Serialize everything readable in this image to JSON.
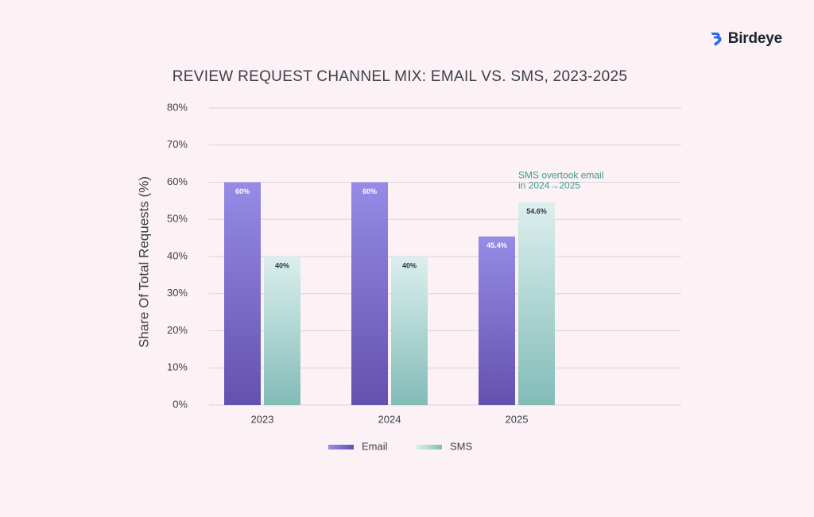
{
  "brand": {
    "name": "Birdeye",
    "icon": "birdeye-logo-icon"
  },
  "colors": {
    "email_top": "#968be6",
    "email_bottom": "#6351ae",
    "sms_top": "#dcefee",
    "sms_bottom": "#82bcb7",
    "grid": "#d9d4d9",
    "annotation": "#3a9a91"
  },
  "chart_data": {
    "type": "bar",
    "title": "REVIEW REQUEST CHANNEL MIX: EMAIL VS. SMS, 2023-2025",
    "xlabel": "",
    "ylabel": "Share Of Total Requests (%)",
    "categories": [
      "2023",
      "2024",
      "2025"
    ],
    "series": [
      {
        "name": "Email",
        "values": [
          60,
          60,
          45.4
        ],
        "labels": [
          "60%",
          "60%",
          "45.4%"
        ]
      },
      {
        "name": "SMS",
        "values": [
          40,
          40,
          54.6
        ],
        "labels": [
          "40%",
          "40%",
          "54.6%"
        ]
      }
    ],
    "ylim": [
      0,
      80
    ],
    "yticks": [
      0,
      10,
      20,
      30,
      40,
      50,
      60,
      70,
      80
    ],
    "ytick_labels": [
      "0%",
      "10%",
      "20%",
      "30%",
      "40%",
      "50%",
      "60%",
      "70%",
      "80%"
    ],
    "grid": true,
    "legend_position": "bottom-center",
    "annotation": {
      "category": "2025",
      "series": "SMS",
      "lines": [
        "SMS overtook email",
        "in 2024→2025"
      ]
    }
  }
}
